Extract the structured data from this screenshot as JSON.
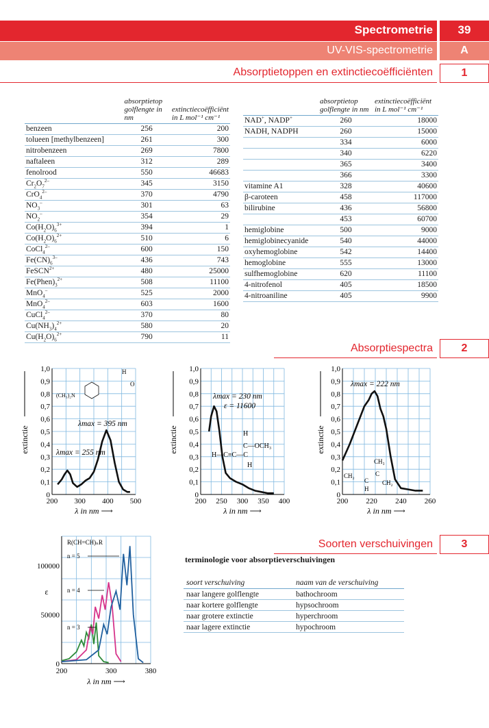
{
  "header": {
    "title": "Spectrometrie",
    "number": "39",
    "subtitle": "UV-VIS-spectrometrie",
    "letter": "A"
  },
  "section1": {
    "title": "Absorptietoppen en extinctiecoëfficiënten",
    "number": "1",
    "col_header_peak_1": "absorptietop",
    "col_header_peak_2": "golflengte in nm",
    "col_header_ext_1": "extinctiecoëfficiënt",
    "col_header_ext_2": "in L mol⁻¹ cm⁻¹",
    "left_rows": [
      {
        "name": "benzeen",
        "nm": "256",
        "eps": "200"
      },
      {
        "name": "tolueen [methylbenzeen]",
        "nm": "261",
        "eps": "300"
      },
      {
        "name": "nitrobenzeen",
        "nm": "269",
        "eps": "7800"
      },
      {
        "name": "naftaleen",
        "nm": "312",
        "eps": "289"
      },
      {
        "name": "fenolrood",
        "nm": "550",
        "eps": "46683"
      },
      {
        "name": "Cr₂O₇²⁻",
        "nm": "345",
        "eps": "3150"
      },
      {
        "name": "CrO₄²⁻",
        "nm": "370",
        "eps": "4790"
      },
      {
        "name": "NO₃⁻",
        "nm": "301",
        "eps": "63"
      },
      {
        "name": "NO₂⁻",
        "nm": "354",
        "eps": "29"
      },
      {
        "name": "Co(H₂O)₆³⁺",
        "nm": "394",
        "eps": "1"
      },
      {
        "name": "Co(H₂O)₆²⁺",
        "nm": "510",
        "eps": "6"
      },
      {
        "name": "CoCl₄²⁻",
        "nm": "600",
        "eps": "150"
      },
      {
        "name": "Fe(CN)₆³⁻",
        "nm": "436",
        "eps": "743"
      },
      {
        "name": "FeSCN²⁺",
        "nm": "480",
        "eps": "25000"
      },
      {
        "name": "Fe(Phen)₃²⁺",
        "nm": "508",
        "eps": "11100"
      },
      {
        "name": "MnO₄⁻",
        "nm": "525",
        "eps": "2000"
      },
      {
        "name": "MnO₄²⁻",
        "nm": "603",
        "eps": "1600"
      },
      {
        "name": "CuCl₄²⁻",
        "nm": "370",
        "eps": "80"
      },
      {
        "name": "Cu(NH₃)₄²⁺",
        "nm": "580",
        "eps": "20"
      },
      {
        "name": "Cu(H₂O)₆²⁺",
        "nm": "790",
        "eps": "11"
      }
    ],
    "right_rows": [
      {
        "name": "NAD⁺, NADP⁺",
        "nm": "260",
        "eps": "18000"
      },
      {
        "name": "NADH, NADPH",
        "nm": "260",
        "eps": "15000"
      },
      {
        "name": "",
        "nm": "334",
        "eps": "6000"
      },
      {
        "name": "",
        "nm": "340",
        "eps": "6220"
      },
      {
        "name": "",
        "nm": "365",
        "eps": "3400"
      },
      {
        "name": "",
        "nm": "366",
        "eps": "3300"
      },
      {
        "name": "vitamine A1",
        "nm": "328",
        "eps": "40600"
      },
      {
        "name": "β-caroteen",
        "nm": "458",
        "eps": "117000"
      },
      {
        "name": "bilirubine",
        "nm": "436",
        "eps": "56800"
      },
      {
        "name": "",
        "nm": "453",
        "eps": "60700"
      },
      {
        "name": "hemiglobine",
        "nm": "500",
        "eps": "9000"
      },
      {
        "name": "hemiglobinecyanide",
        "nm": "540",
        "eps": "44000"
      },
      {
        "name": "oxyhemoglobine",
        "nm": "542",
        "eps": "14400"
      },
      {
        "name": "hemoglobine",
        "nm": "555",
        "eps": "13000"
      },
      {
        "name": "sulfhemoglobine",
        "nm": "620",
        "eps": "11100"
      },
      {
        "name": "4-nitrofenol",
        "nm": "405",
        "eps": "18500"
      },
      {
        "name": "4-nitroaniline",
        "nm": "405",
        "eps": "9900"
      }
    ]
  },
  "section2": {
    "title": "Absorptiespectra",
    "number": "2"
  },
  "section3": {
    "title": "Soorten verschuivingen",
    "number": "3",
    "table_title": "terminologie voor absorptieverschuivingen",
    "col1": "soort verschuiving",
    "col2": "naam van de verschuiving",
    "rows": [
      {
        "shift": "naar langere golflengte",
        "name": "bathochroom"
      },
      {
        "shift": "naar kortere golflengte",
        "name": "hypsochroom"
      },
      {
        "shift": "naar grotere extinctie",
        "name": "hyperchroom"
      },
      {
        "shift": "naar lagere extinctie",
        "name": "hypochroom"
      }
    ]
  },
  "chart_data": [
    {
      "type": "line",
      "ylabel": "extinctie",
      "xlabel": "λ in nm",
      "xlim": [
        200,
        500
      ],
      "ylim": [
        0,
        1.0
      ],
      "x_ticks": [
        "200",
        "300",
        "400",
        "500"
      ],
      "y_ticks": [
        "0",
        "0,1",
        "0,2",
        "0,3",
        "0,4",
        "0,5",
        "0,6",
        "0,7",
        "0,8",
        "0,9",
        "1,0"
      ],
      "annotations": [
        "λmax = 395 nm",
        "λmax = 255 nm"
      ],
      "structure_labels": [
        "(CH₃)₂N",
        "H",
        "O"
      ],
      "series": [
        {
          "x": [
            220,
            235,
            245,
            255,
            265,
            275,
            290,
            305,
            320,
            335,
            350,
            365,
            380,
            395,
            410,
            425,
            440,
            455,
            470,
            480
          ],
          "y": [
            0.08,
            0.12,
            0.16,
            0.19,
            0.16,
            0.09,
            0.06,
            0.08,
            0.11,
            0.13,
            0.18,
            0.28,
            0.42,
            0.51,
            0.43,
            0.25,
            0.1,
            0.04,
            0.02,
            0.02
          ]
        }
      ]
    },
    {
      "type": "line",
      "ylabel": "extinctie",
      "xlabel": "λ in nm",
      "xlim": [
        200,
        400
      ],
      "ylim": [
        0,
        1.0
      ],
      "x_ticks": [
        "200",
        "250",
        "300",
        "350",
        "400"
      ],
      "y_ticks": [
        "0",
        "0,1",
        "0,2",
        "0,3",
        "0,4",
        "0,5",
        "0,6",
        "0,7",
        "0,8",
        "0,9",
        "1,0"
      ],
      "annotations": [
        "λmax = 230 nm",
        "ε = 11600"
      ],
      "structure_labels": [
        "H",
        "H",
        "C",
        "OCH₃",
        "H",
        "C≡C",
        "C",
        "H"
      ],
      "series": [
        {
          "x": [
            220,
            225,
            232,
            238,
            245,
            252,
            260,
            270,
            285,
            300,
            315,
            330,
            345,
            360,
            375
          ],
          "y": [
            0.5,
            0.62,
            0.7,
            0.66,
            0.5,
            0.3,
            0.17,
            0.13,
            0.1,
            0.08,
            0.05,
            0.03,
            0.02,
            0.01,
            0.01
          ]
        }
      ]
    },
    {
      "type": "line",
      "ylabel": "extinctie",
      "xlabel": "λ in nm",
      "xlim": [
        200,
        260
      ],
      "ylim": [
        0,
        1.0
      ],
      "x_ticks": [
        "200",
        "220",
        "240",
        "260"
      ],
      "y_ticks": [
        "0",
        "0,1",
        "0,2",
        "0,3",
        "0,4",
        "0,5",
        "0,6",
        "0,7",
        "0,8",
        "0,9",
        "1,0"
      ],
      "annotations": [
        "λmax = 222 nm"
      ],
      "structure_labels": [
        "CH₃",
        "CH₂",
        "C",
        "C",
        "CH₂",
        "H"
      ],
      "series": [
        {
          "x": [
            200,
            205,
            210,
            215,
            218,
            220,
            222,
            224,
            226,
            228,
            230,
            233,
            236,
            240,
            245,
            250,
            255
          ],
          "y": [
            0.27,
            0.4,
            0.55,
            0.7,
            0.75,
            0.8,
            0.82,
            0.78,
            0.68,
            0.62,
            0.52,
            0.3,
            0.12,
            0.05,
            0.04,
            0.03,
            0.03
          ]
        }
      ]
    },
    {
      "type": "line",
      "ylabel": "ε",
      "xlabel": "λ in nm",
      "xlim": [
        200,
        380
      ],
      "ylim": [
        0,
        130000
      ],
      "x_ticks": [
        "200",
        "300",
        "380"
      ],
      "y_ticks": [
        "0",
        "50000",
        "100000"
      ],
      "annotations": [
        "R(CH=CH)ₙR",
        "n = 5",
        "n = 4",
        "n = 3"
      ],
      "series": [
        {
          "color": "#2e8b3a",
          "x": [
            200,
            215,
            230,
            240,
            245,
            250,
            255,
            260,
            265,
            270,
            275,
            285,
            295
          ],
          "y": [
            3000,
            5000,
            12000,
            24000,
            18000,
            32000,
            26000,
            40000,
            20000,
            42000,
            8000,
            2000,
            1000
          ]
        },
        {
          "color": "#d6338a",
          "x": [
            200,
            230,
            250,
            258,
            263,
            268,
            275,
            282,
            288,
            295,
            302,
            310,
            320
          ],
          "y": [
            2000,
            4000,
            14000,
            38000,
            30000,
            58000,
            46000,
            70000,
            55000,
            83000,
            60000,
            10000,
            2000
          ]
        },
        {
          "color": "#1f5f9e",
          "x": [
            200,
            250,
            275,
            285,
            292,
            300,
            310,
            318,
            325,
            332,
            338,
            345,
            355,
            365
          ],
          "y": [
            2000,
            4000,
            14000,
            40000,
            30000,
            58000,
            74000,
            55000,
            112000,
            80000,
            120000,
            50000,
            5000,
            1000
          ]
        }
      ]
    }
  ]
}
